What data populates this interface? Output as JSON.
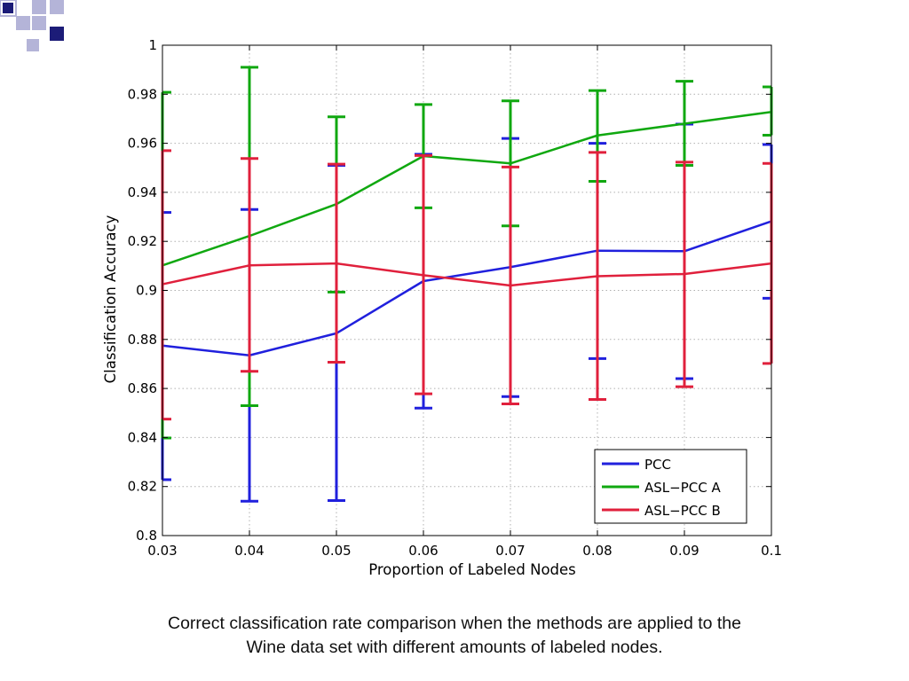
{
  "slide": {
    "caption_line1": "Correct classification rate comparison when the methods are applied to the",
    "caption_line2": "Wine data set with different amounts of labeled nodes."
  },
  "colors": {
    "logo_dark": "#1c1c78",
    "logo_light": "#b4b4d8"
  },
  "chart_data": {
    "type": "line",
    "xlabel": "Proportion of Labeled Nodes",
    "ylabel": "Classification Accuracy",
    "x": [
      0.03,
      0.04,
      0.05,
      0.06,
      0.07,
      0.08,
      0.09,
      0.1
    ],
    "x_tick_labels": [
      "0.03",
      "0.04",
      "0.05",
      "0.06",
      "0.07",
      "0.08",
      "0.09",
      "0.1"
    ],
    "xlim": [
      0.03,
      0.1
    ],
    "ylim": [
      0.8,
      1.0
    ],
    "y_ticks": [
      0.8,
      0.82,
      0.84,
      0.86,
      0.88,
      0.9,
      0.92,
      0.94,
      0.96,
      0.98,
      1.0
    ],
    "y_tick_labels": [
      "0.8",
      "0.82",
      "0.84",
      "0.86",
      "0.88",
      "0.9",
      "0.92",
      "0.94",
      "0.96",
      "0.98",
      "1"
    ],
    "grid": true,
    "legend_position": "bottom-right",
    "series": [
      {
        "name": "PCC",
        "color": "#2020dd",
        "values": [
          0.8775,
          0.8735,
          0.8825,
          0.9038,
          0.9095,
          0.9162,
          0.916,
          0.9282
        ],
        "upper": [
          0.9318,
          0.933,
          0.951,
          0.9555,
          0.962,
          0.96,
          0.9678,
          0.9595
        ],
        "lower": [
          0.8228,
          0.814,
          0.8143,
          0.852,
          0.8567,
          0.8722,
          0.864,
          0.8968
        ]
      },
      {
        "name": "ASL−PCC A",
        "color": "#10a810",
        "values": [
          0.9102,
          0.9222,
          0.9352,
          0.9548,
          0.9518,
          0.9632,
          0.968,
          0.9728
        ],
        "upper": [
          0.9808,
          0.991,
          0.9708,
          0.9758,
          0.9773,
          0.9815,
          0.9853,
          0.983
        ],
        "lower": [
          0.8398,
          0.853,
          0.8993,
          0.9337,
          0.9263,
          0.9445,
          0.951,
          0.9633
        ]
      },
      {
        "name": "ASL−PCC B",
        "color": "#e0203c",
        "values": [
          0.9025,
          0.9102,
          0.911,
          0.9062,
          0.902,
          0.9058,
          0.9067,
          0.911
        ],
        "upper": [
          0.957,
          0.9538,
          0.9515,
          0.955,
          0.9503,
          0.9563,
          0.9523,
          0.9518
        ],
        "lower": [
          0.8475,
          0.867,
          0.8707,
          0.8578,
          0.8537,
          0.8555,
          0.8607,
          0.8702
        ]
      }
    ]
  }
}
